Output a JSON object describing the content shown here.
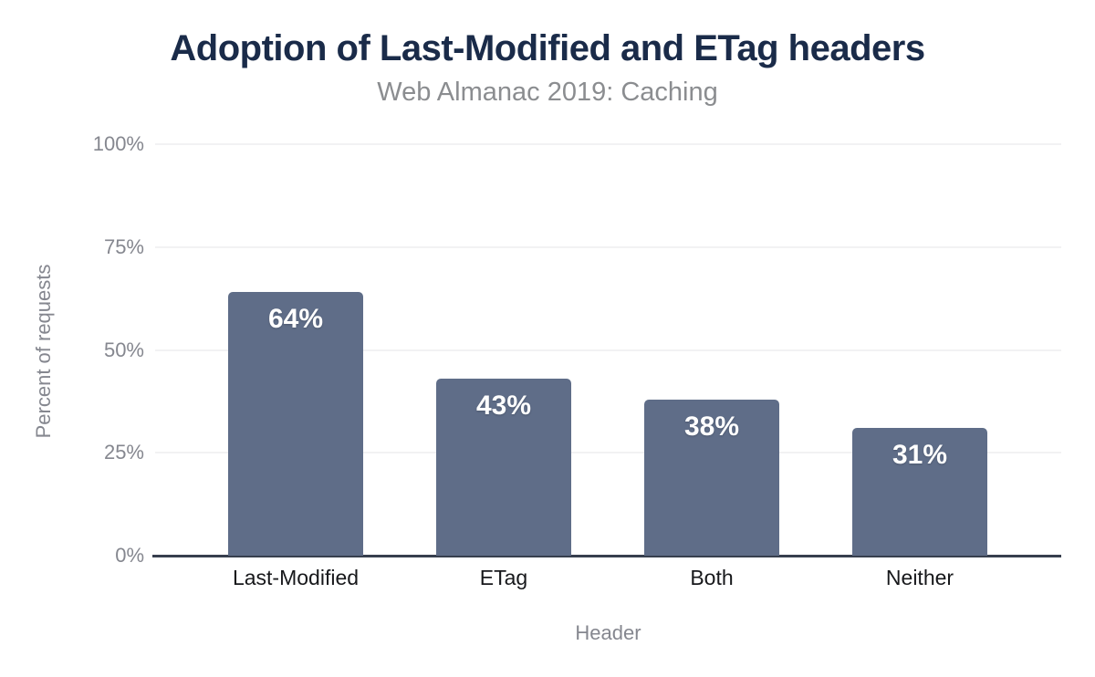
{
  "chart_data": {
    "type": "bar",
    "title": "Adoption of Last-Modified and ETag headers",
    "subtitle": "Web Almanac 2019: Caching",
    "xlabel": "Header",
    "ylabel": "Percent of requests",
    "categories": [
      "Last-Modified",
      "ETag",
      "Both",
      "Neither"
    ],
    "values": [
      64,
      43,
      38,
      31
    ],
    "value_labels": [
      "64%",
      "43%",
      "38%",
      "31%"
    ],
    "y_ticks": [
      {
        "value": 0,
        "label": "0%"
      },
      {
        "value": 25,
        "label": "25%"
      },
      {
        "value": 50,
        "label": "50%"
      },
      {
        "value": 75,
        "label": "75%"
      },
      {
        "value": 100,
        "label": "100%"
      }
    ],
    "ylim": [
      0,
      100
    ],
    "grid": true,
    "legend": false,
    "colors": {
      "bar": "#5f6d88",
      "title": "#1a2b49",
      "subtitle": "#8b8d90",
      "axis_text": "#85878f",
      "category_text": "#17181b",
      "gridline": "#f2f2f3",
      "axis_line": "#373f4e",
      "value_label": "#ffffff",
      "background": "#ffffff"
    }
  }
}
